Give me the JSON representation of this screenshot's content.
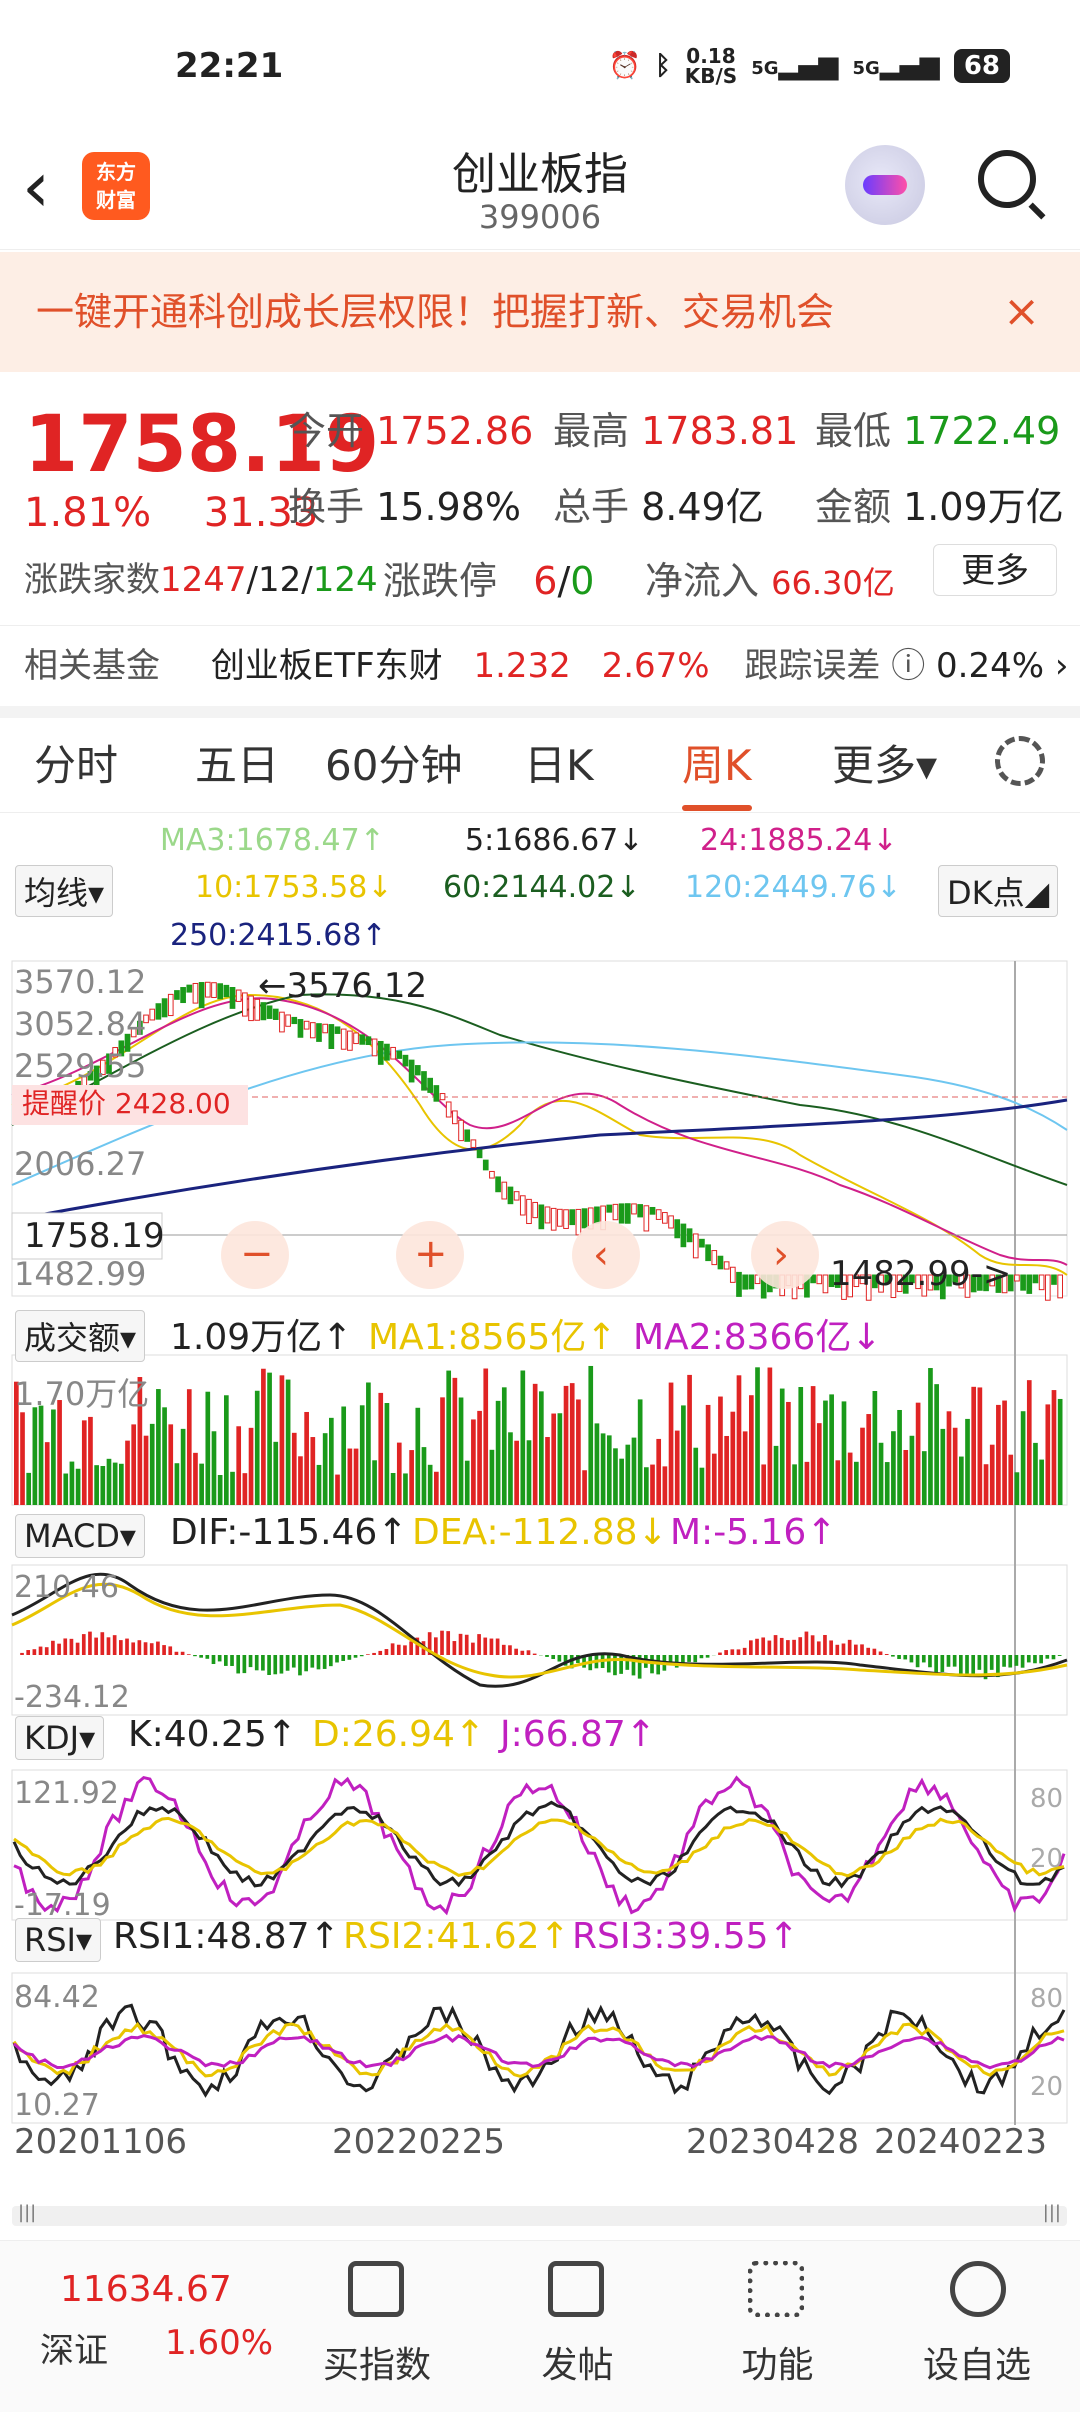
{
  "status": {
    "time": "22:21",
    "net": "0.18",
    "net_unit": "KB/S",
    "sig1": "5G",
    "sig2": "5G",
    "battery": "68"
  },
  "header": {
    "title": "创业板指",
    "code": "399006",
    "logo_line1": "东方",
    "logo_line2": "财富"
  },
  "banner": {
    "text": "一键开通科创成长层权限！把握打新、交易机会",
    "close": "×"
  },
  "quote": {
    "price": "1758.19",
    "pct": "1.81%",
    "chg": "31.33",
    "open_label": "今开",
    "open": "1752.86",
    "high_label": "最高",
    "high": "1783.81",
    "low_label": "最低",
    "low": "1722.49",
    "turnover_label": "换手",
    "turnover": "15.98%",
    "vol_label": "总手",
    "vol": "8.49亿",
    "amt_label": "金额",
    "amt": "1.09万亿",
    "breadth_label": "涨跌家数",
    "up": "1247",
    "flat": "12",
    "down": "124",
    "limit_label": "涨跌停",
    "limit_up": "6",
    "limit_down": "0",
    "inflow_label": "净流入",
    "inflow": "66.30亿",
    "more": "更多"
  },
  "fund": {
    "label": "相关基金",
    "name": "创业板ETF东财",
    "price": "1.232",
    "pct": "2.67%",
    "err_label": "跟踪误差",
    "err": "0.24%"
  },
  "tabs": [
    "分时",
    "五日",
    "60分钟",
    "日K",
    "周K",
    "更多▾"
  ],
  "ma": {
    "selector": "均线",
    "dk": "DK点",
    "ma3": "MA3:1678.47↑",
    "ma5": "5:1686.67↓",
    "ma24": "24:1885.24↓",
    "ma10": "10:1753.58↓",
    "ma60": "60:2144.02↓",
    "ma120": "120:2449.76↓",
    "ma250": "250:2415.68↑"
  },
  "kline": {
    "y1": "3570.12",
    "y2": "3052.84",
    "y3": "2529.55",
    "y4": "2006.27",
    "y5": "1482.99",
    "hi": "←3576.12",
    "lo": "1482.99->",
    "cur": "1758.19",
    "alert": "提醒价 2428.00"
  },
  "vol": {
    "selector": "成交额",
    "val": "1.09万亿↑",
    "ma1": "MA1:8565亿↑",
    "ma2": "MA2:8366亿↓",
    "axis": "1.70万亿"
  },
  "macd": {
    "selector": "MACD",
    "dif": "DIF:-115.46↑",
    "dea": "DEA:-112.88↓",
    "m": "M:-5.16↑",
    "top": "210.46",
    "bot": "-234.12"
  },
  "kdj": {
    "selector": "KDJ",
    "k": "K:40.25↑",
    "d": "D:26.94↑",
    "j": "J:66.87↑",
    "top": "121.92",
    "bot": "-17.19",
    "r80": "80",
    "r20": "20"
  },
  "rsi": {
    "selector": "RSI",
    "r1": "RSI1:48.87↑",
    "r2": "RSI2:41.62↑",
    "r3": "RSI3:39.55↑",
    "top": "84.42",
    "bot": "10.27",
    "r80": "80",
    "r20": "20"
  },
  "dates": [
    "20201106",
    "20220225",
    "20230428",
    "20240223"
  ],
  "bottom": {
    "index_val": "11634.67",
    "index_name": "深证",
    "index_pct": "1.60%",
    "b1": "买指数",
    "b2": "发帖",
    "b3": "功能",
    "b4": "设自选"
  },
  "colors": {
    "up": "#e02424",
    "down": "#1a9a1a",
    "accent": "#e0502a"
  }
}
